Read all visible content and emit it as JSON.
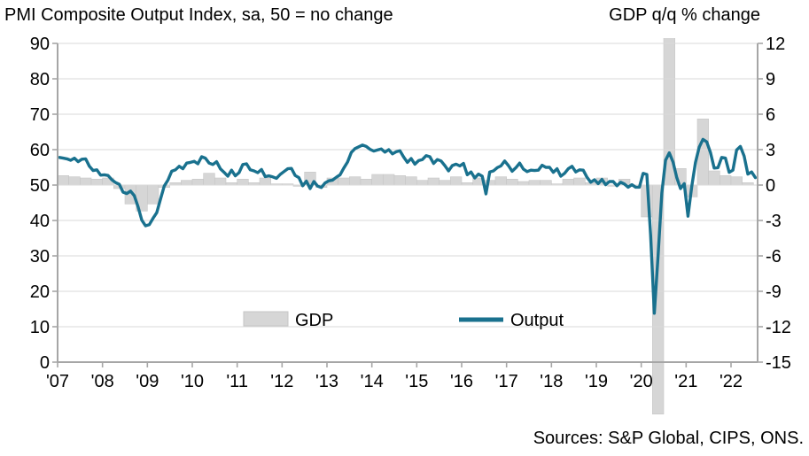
{
  "titles": {
    "left": "PMI Composite Output Index, sa, 50 = no change",
    "right": "GDP q/q % change"
  },
  "legend": {
    "gdp_label": "GDP",
    "output_label": "Output"
  },
  "source_note": "Sources: S&P Global, CIPS, ONS.",
  "colors": {
    "line": "#19718e",
    "bar_fill": "#d6d6d6",
    "bar_stroke": "#c6c6c6",
    "grid": "#d9d9d9",
    "axis": "#a6a6a6",
    "text": "#000000"
  },
  "chart_data": {
    "type": "combo",
    "grid": true,
    "legend_position": "inside-bottom",
    "x_axis": {
      "tick_labels": [
        "'07",
        "'08",
        "'09",
        "'10",
        "'11",
        "'12",
        "'13",
        "'14",
        "'15",
        "'16",
        "'17",
        "'18",
        "'19",
        "'20",
        "'21",
        "'22"
      ]
    },
    "left_axis": {
      "label": "PMI Composite Output Index, sa, 50 = no change",
      "min": 0,
      "max": 90,
      "step": 10,
      "tick_labels": [
        "90",
        "80",
        "70",
        "60",
        "50",
        "40",
        "30",
        "20",
        "10",
        "0"
      ]
    },
    "right_axis": {
      "label": "GDP q/q % change",
      "min": -15,
      "max": 12,
      "step": 3,
      "tick_labels": [
        "12",
        "9",
        "6",
        "3",
        "0",
        "-3",
        "-6",
        "-9",
        "-12",
        "-15"
      ]
    },
    "series": [
      {
        "name": "GDP",
        "type": "bar",
        "axis": "right",
        "frequency": "quarterly",
        "start": "2007-Q1",
        "values": [
          0.8,
          0.7,
          0.6,
          0.5,
          0.6,
          -0.3,
          -1.6,
          -2.2,
          -1.6,
          -0.2,
          0.2,
          0.4,
          0.5,
          1.0,
          0.6,
          0.2,
          0.5,
          0.2,
          0.6,
          0.1,
          0.1,
          -0.1,
          1.1,
          -0.2,
          0.6,
          0.6,
          0.7,
          0.5,
          0.9,
          0.9,
          0.8,
          0.7,
          0.4,
          0.6,
          0.4,
          0.7,
          0.2,
          0.6,
          0.4,
          0.7,
          0.5,
          0.3,
          0.4,
          0.4,
          0.1,
          0.5,
          0.6,
          0.2,
          0.6,
          -0.1,
          0.5,
          0.0,
          -2.7,
          -19.4,
          16.9,
          1.4,
          -1.0,
          5.6,
          1.2,
          0.8,
          0.7,
          0.2
        ]
      },
      {
        "name": "Output",
        "type": "line",
        "axis": "left",
        "frequency": "monthly",
        "start": "2007-01",
        "values": [
          57.8,
          57.6,
          57.4,
          57.0,
          57.6,
          56.6,
          57.3,
          57.4,
          55.3,
          54.1,
          54.3,
          52.8,
          52.9,
          52.7,
          51.5,
          50.7,
          50.2,
          48.0,
          47.6,
          48.3,
          47.0,
          43.9,
          40.1,
          38.5,
          38.8,
          40.6,
          42.2,
          46.0,
          49.7,
          51.4,
          53.9,
          54.3,
          55.3,
          54.6,
          56.2,
          56.4,
          56.7,
          56.0,
          58.0,
          57.6,
          56.2,
          55.8,
          56.6,
          54.6,
          53.6,
          52.5,
          54.2,
          52.6,
          53.5,
          55.8,
          56.0,
          54.3,
          54.0,
          53.5,
          54.4,
          52.4,
          52.6,
          52.3,
          51.9,
          53.0,
          53.8,
          54.6,
          54.7,
          52.7,
          52.1,
          49.8,
          51.1,
          49.0,
          51.0,
          49.7,
          49.3,
          50.6,
          51.2,
          51.4,
          52.2,
          52.9,
          54.8,
          56.5,
          59.2,
          60.3,
          60.8,
          61.3,
          60.9,
          60.1,
          59.6,
          59.9,
          60.2,
          59.3,
          60.0,
          58.8,
          59.4,
          59.7,
          57.9,
          56.4,
          57.5,
          55.9,
          56.9,
          57.2,
          58.3,
          58.0,
          56.1,
          57.2,
          56.8,
          55.5,
          54.0,
          55.5,
          55.9,
          55.4,
          56.1,
          52.9,
          53.7,
          52.0,
          53.1,
          52.5,
          47.5,
          53.7,
          54.0,
          54.9,
          55.4,
          56.8,
          55.5,
          53.9,
          54.9,
          56.2,
          54.5,
          53.8,
          54.2,
          54.1,
          54.2,
          55.6,
          55.0,
          55.0,
          53.6,
          54.6,
          52.5,
          53.3,
          54.6,
          55.3,
          53.7,
          54.3,
          54.2,
          52.2,
          50.8,
          51.5,
          50.4,
          51.6,
          50.1,
          51.0,
          51.0,
          49.8,
          50.8,
          50.3,
          49.4,
          50.1,
          49.4,
          49.4,
          53.3,
          53.0,
          36.0,
          13.8,
          30.0,
          47.7,
          57.0,
          59.1,
          56.5,
          52.1,
          49.0,
          50.4,
          41.2,
          49.6,
          56.4,
          60.7,
          62.9,
          62.2,
          59.2,
          54.8,
          54.9,
          57.8,
          57.6,
          53.6,
          54.2,
          59.9,
          60.9,
          58.2,
          53.1,
          53.7,
          52.1
        ]
      }
    ]
  }
}
